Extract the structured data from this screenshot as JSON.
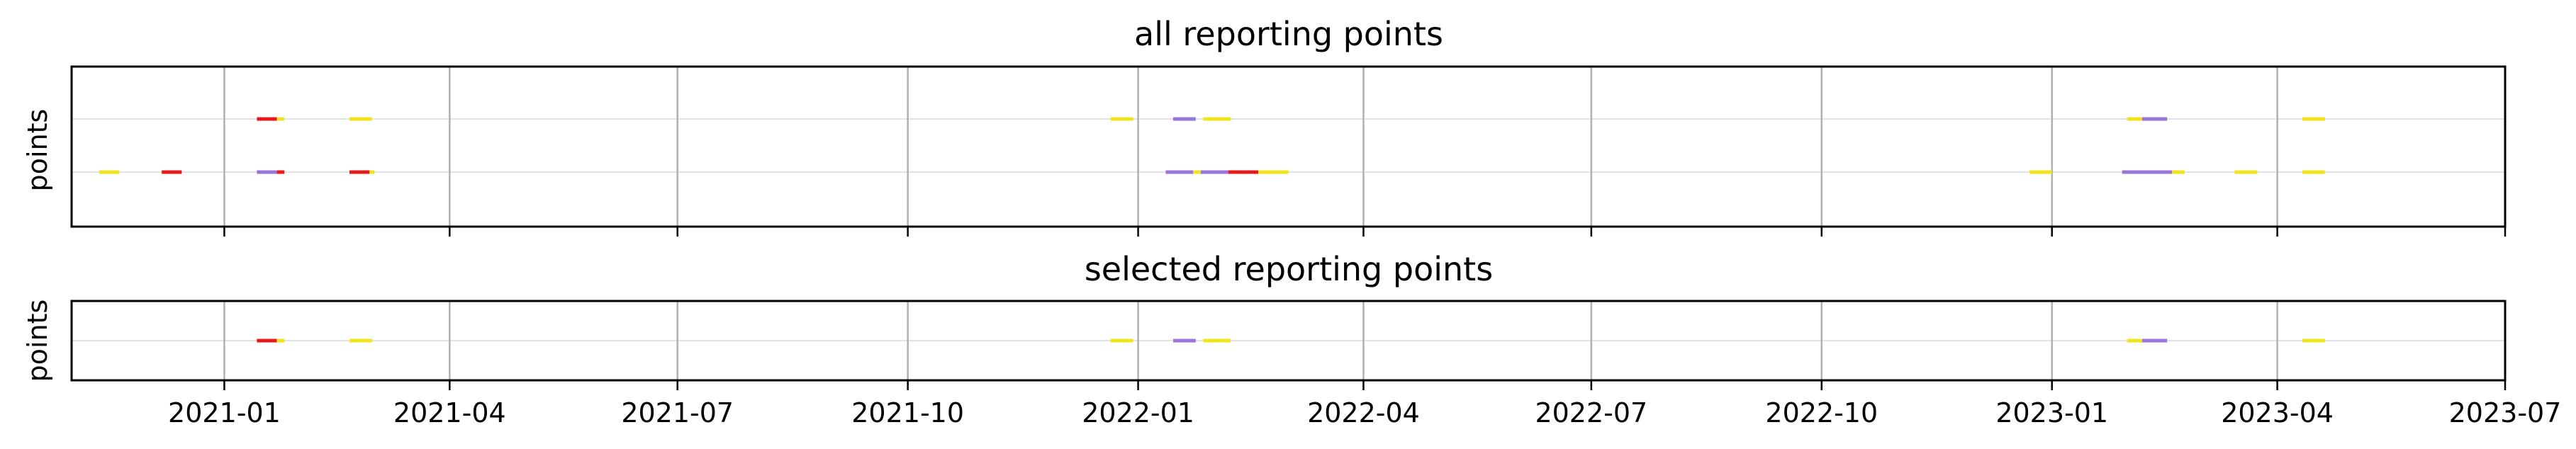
{
  "chart_data": {
    "type": "timeline",
    "x_axis": {
      "min": "2020-11-01",
      "max": "2023-07-01",
      "tick_labels": [
        "2021-01",
        "2021-04",
        "2021-07",
        "2021-10",
        "2022-01",
        "2022-04",
        "2022-07",
        "2022-10",
        "2023-01",
        "2023-04",
        "2023-07"
      ],
      "grid": true
    },
    "colors": {
      "red": "#e8191b",
      "yellow": "#f1e41b",
      "purple": "#9b74d8"
    },
    "panels": [
      {
        "title": "all reporting points",
        "ylabel": "points",
        "rows": 2,
        "segments": [
          {
            "row": 1,
            "start": "2020-11-12",
            "end": "2020-11-20",
            "color": "yellow"
          },
          {
            "row": 1,
            "start": "2020-12-07",
            "end": "2020-12-15",
            "color": "red"
          },
          {
            "row": 1,
            "start": "2021-01-14",
            "end": "2021-01-22",
            "color": "purple"
          },
          {
            "row": 1,
            "start": "2021-01-22",
            "end": "2021-01-25",
            "color": "red"
          },
          {
            "row": 1,
            "start": "2021-02-20",
            "end": "2021-02-28",
            "color": "red"
          },
          {
            "row": 1,
            "start": "2021-02-28",
            "end": "2021-03-02",
            "color": "yellow"
          },
          {
            "row": 2,
            "start": "2021-01-14",
            "end": "2021-01-22",
            "color": "red"
          },
          {
            "row": 2,
            "start": "2021-01-22",
            "end": "2021-01-25",
            "color": "yellow"
          },
          {
            "row": 2,
            "start": "2021-02-20",
            "end": "2021-03-01",
            "color": "yellow"
          },
          {
            "row": 2,
            "start": "2021-12-21",
            "end": "2021-12-30",
            "color": "yellow"
          },
          {
            "row": 2,
            "start": "2022-01-15",
            "end": "2022-01-24",
            "color": "purple"
          },
          {
            "row": 2,
            "start": "2022-01-27",
            "end": "2022-02-07",
            "color": "yellow"
          },
          {
            "row": 1,
            "start": "2022-01-12",
            "end": "2022-01-23",
            "color": "purple"
          },
          {
            "row": 1,
            "start": "2022-01-23",
            "end": "2022-01-26",
            "color": "yellow"
          },
          {
            "row": 1,
            "start": "2022-01-26",
            "end": "2022-02-06",
            "color": "purple"
          },
          {
            "row": 1,
            "start": "2022-02-06",
            "end": "2022-02-18",
            "color": "red"
          },
          {
            "row": 1,
            "start": "2022-02-18",
            "end": "2022-03-02",
            "color": "yellow"
          },
          {
            "row": 1,
            "start": "2022-12-23",
            "end": "2023-01-01",
            "color": "yellow"
          },
          {
            "row": 1,
            "start": "2023-01-29",
            "end": "2023-02-18",
            "color": "purple"
          },
          {
            "row": 1,
            "start": "2023-02-18",
            "end": "2023-02-23",
            "color": "yellow"
          },
          {
            "row": 1,
            "start": "2023-03-15",
            "end": "2023-03-24",
            "color": "yellow"
          },
          {
            "row": 1,
            "start": "2023-04-11",
            "end": "2023-04-20",
            "color": "yellow"
          },
          {
            "row": 2,
            "start": "2023-01-31",
            "end": "2023-02-06",
            "color": "yellow"
          },
          {
            "row": 2,
            "start": "2023-02-06",
            "end": "2023-02-16",
            "color": "purple"
          },
          {
            "row": 2,
            "start": "2023-04-11",
            "end": "2023-04-20",
            "color": "yellow"
          }
        ]
      },
      {
        "title": "selected reporting points",
        "ylabel": "points",
        "rows": 1,
        "segments": [
          {
            "row": 1,
            "start": "2021-01-14",
            "end": "2021-01-22",
            "color": "red"
          },
          {
            "row": 1,
            "start": "2021-01-22",
            "end": "2021-01-25",
            "color": "yellow"
          },
          {
            "row": 1,
            "start": "2021-02-20",
            "end": "2021-03-01",
            "color": "yellow"
          },
          {
            "row": 1,
            "start": "2021-12-21",
            "end": "2021-12-30",
            "color": "yellow"
          },
          {
            "row": 1,
            "start": "2022-01-15",
            "end": "2022-01-24",
            "color": "purple"
          },
          {
            "row": 1,
            "start": "2022-01-27",
            "end": "2022-02-07",
            "color": "yellow"
          },
          {
            "row": 1,
            "start": "2023-01-31",
            "end": "2023-02-06",
            "color": "yellow"
          },
          {
            "row": 1,
            "start": "2023-02-06",
            "end": "2023-02-16",
            "color": "purple"
          },
          {
            "row": 1,
            "start": "2023-04-11",
            "end": "2023-04-20",
            "color": "yellow"
          }
        ]
      }
    ]
  }
}
